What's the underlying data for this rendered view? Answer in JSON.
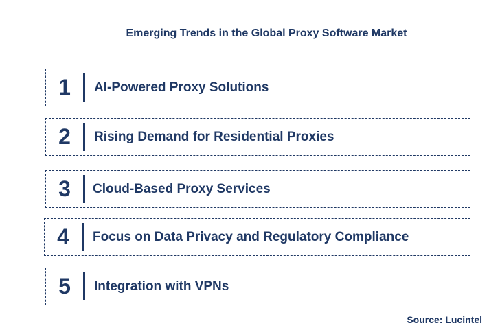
{
  "title": "Emerging Trends in the Global Proxy Software Market",
  "items": [
    {
      "number": "1",
      "label": "AI-Powered Proxy Solutions"
    },
    {
      "number": "2",
      "label": "Rising Demand for Residential Proxies"
    },
    {
      "number": "3",
      "label": "Cloud-Based Proxy Services"
    },
    {
      "number": "4",
      "label": "Focus on Data Privacy and Regulatory Compliance"
    },
    {
      "number": "5",
      "label": "Integration with VPNs"
    }
  ],
  "source": "Source: Lucintel",
  "colors": {
    "primary": "#1f3864",
    "background": "#ffffff"
  }
}
